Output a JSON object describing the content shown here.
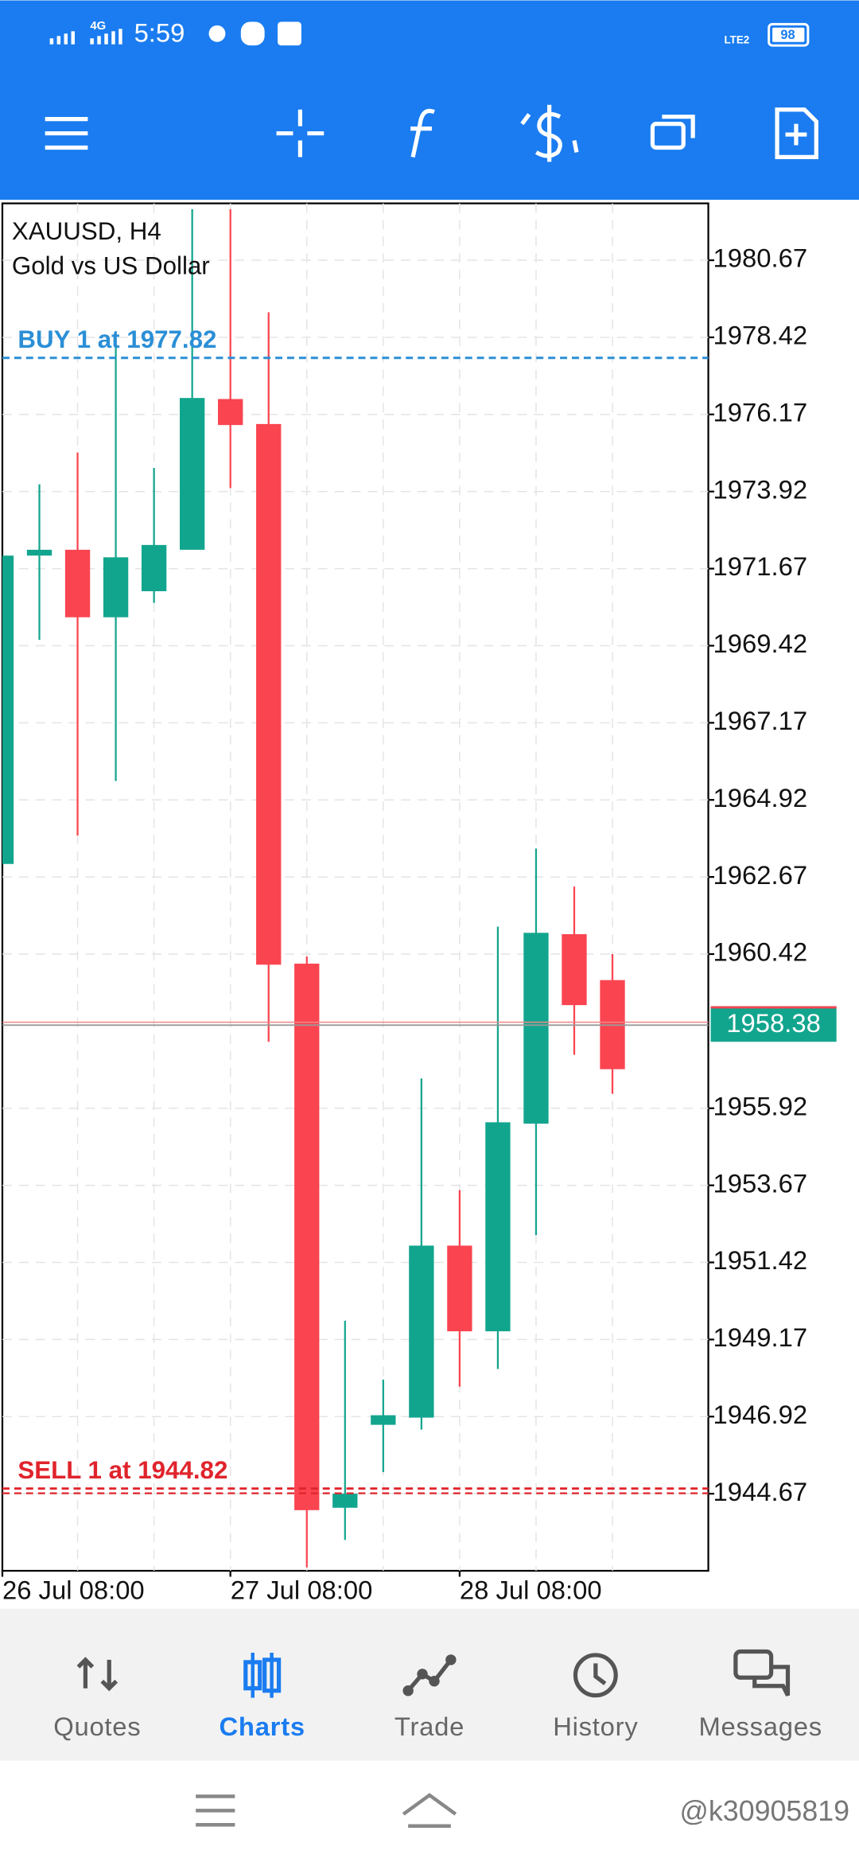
{
  "status_bar": {
    "time": "5:59",
    "network": "4G",
    "sim": "LTE2",
    "battery": "98"
  },
  "chart_data": {
    "type": "candlestick",
    "title": "XAUUSD, H4",
    "subtitle": "Gold vs US Dollar",
    "categories": [
      "26 Jul 08:00",
      null,
      null,
      null,
      null,
      null,
      "27 Jul 08:00",
      null,
      null,
      null,
      null,
      null,
      "28 Jul 08:00",
      null,
      null,
      null,
      null
    ],
    "open": [
      1963.05,
      1972.05,
      1972.22,
      1970.25,
      1971.01,
      1972.22,
      1976.62,
      1975.89,
      1960.14,
      1944.26,
      1946.68,
      1946.89,
      1951.91,
      1949.41,
      1955.47,
      1961.0,
      1959.66
    ],
    "high": [
      1972.05,
      1974.13,
      1975.06,
      1978.35,
      1974.61,
      1982.16,
      1982.16,
      1979.15,
      1960.35,
      1949.72,
      1948.0,
      1956.79,
      1953.53,
      1961.22,
      1963.5,
      1962.39,
      1960.42
    ],
    "low": [
      1963.05,
      1969.59,
      1963.88,
      1965.47,
      1970.67,
      1972.22,
      1974.02,
      1957.86,
      1942.52,
      1943.32,
      1945.3,
      1946.54,
      1947.79,
      1948.31,
      1952.22,
      1957.48,
      1956.34
    ],
    "close": [
      1972.05,
      1972.22,
      1970.25,
      1972.0,
      1972.36,
      1976.65,
      1975.86,
      1960.11,
      1944.19,
      1944.67,
      1946.96,
      1951.91,
      1949.41,
      1955.51,
      1961.04,
      1958.93,
      1957.06
    ],
    "up_color": "#12a58e",
    "down_color": "#fa4450",
    "ylim": [
      1942.42,
      1982.33
    ],
    "yticks": [
      1980.67,
      1978.42,
      1976.17,
      1973.92,
      1971.67,
      1969.42,
      1967.17,
      1964.92,
      1962.67,
      1960.42,
      1955.92,
      1953.67,
      1951.42,
      1949.17,
      1946.92,
      1944.67
    ],
    "grid": true,
    "current_price": 1958.38,
    "order_lines": [
      {
        "label": "BUY 1 at 1977.82",
        "value": 1977.82,
        "color": "#2b8fd6"
      },
      {
        "label": "SELL 1 at 1944.82",
        "value": 1944.82,
        "color": "#e0242c"
      }
    ]
  },
  "bottom_nav": {
    "items": [
      "Quotes",
      "Charts",
      "Trade",
      "History",
      "Messages"
    ],
    "active": 1
  },
  "watermark": "@k30905819"
}
